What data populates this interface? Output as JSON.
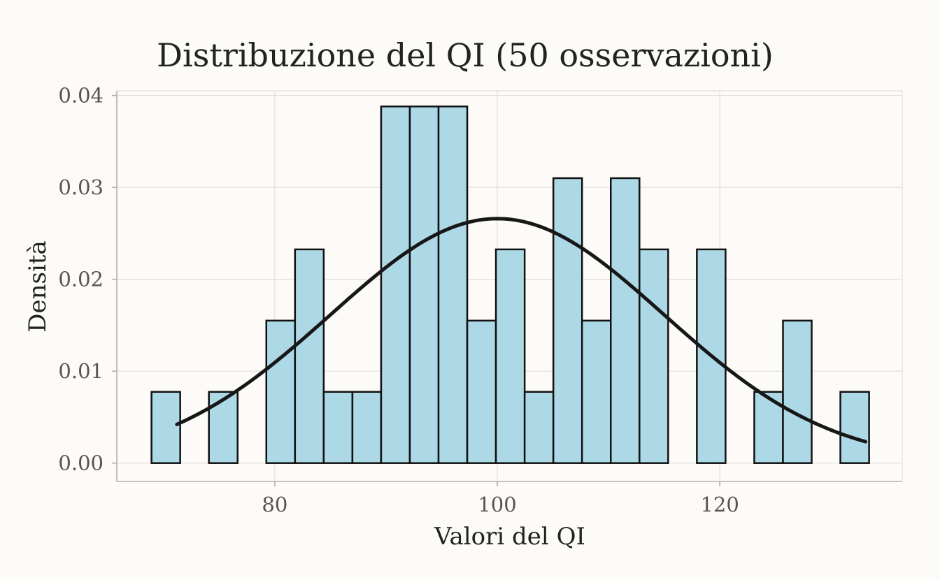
{
  "chart_data": {
    "type": "bar",
    "subtype": "histogram",
    "title": "Distribuzione del QI (50 osservazioni)",
    "xlabel": "Valori del QI",
    "ylabel": "Densità",
    "xlim": [
      65.8,
      136.4
    ],
    "ylim": [
      -0.002,
      0.0405
    ],
    "x_ticks": [
      80,
      100,
      120
    ],
    "x_tick_labels": [
      "80",
      "100",
      "120"
    ],
    "y_ticks": [
      0,
      0.01,
      0.02,
      0.03,
      0.04
    ],
    "y_tick_labels": [
      "0.00",
      "0.01",
      "0.02",
      "0.03",
      "0.04"
    ],
    "grid": true,
    "legend": "none",
    "bin_width": 2.58,
    "bins": [
      {
        "x0": 68.92,
        "x1": 71.5,
        "density": 0.00775
      },
      {
        "x0": 71.5,
        "x1": 74.08,
        "density": 0
      },
      {
        "x0": 74.08,
        "x1": 76.66,
        "density": 0.00775
      },
      {
        "x0": 76.66,
        "x1": 79.24,
        "density": 0
      },
      {
        "x0": 79.24,
        "x1": 81.82,
        "density": 0.0155
      },
      {
        "x0": 81.82,
        "x1": 84.4,
        "density": 0.02325
      },
      {
        "x0": 84.4,
        "x1": 86.98,
        "density": 0.00775
      },
      {
        "x0": 86.98,
        "x1": 89.56,
        "density": 0.00775
      },
      {
        "x0": 89.56,
        "x1": 92.14,
        "density": 0.0388
      },
      {
        "x0": 92.14,
        "x1": 94.72,
        "density": 0.0388
      },
      {
        "x0": 94.72,
        "x1": 97.3,
        "density": 0.0388
      },
      {
        "x0": 97.3,
        "x1": 99.88,
        "density": 0.0155
      },
      {
        "x0": 99.88,
        "x1": 102.46,
        "density": 0.02325
      },
      {
        "x0": 102.46,
        "x1": 105.04,
        "density": 0.00775
      },
      {
        "x0": 105.04,
        "x1": 107.62,
        "density": 0.031
      },
      {
        "x0": 107.62,
        "x1": 110.2,
        "density": 0.0155
      },
      {
        "x0": 110.2,
        "x1": 112.78,
        "density": 0.031
      },
      {
        "x0": 112.78,
        "x1": 115.36,
        "density": 0.02325
      },
      {
        "x0": 115.36,
        "x1": 117.94,
        "density": 0
      },
      {
        "x0": 117.94,
        "x1": 120.52,
        "density": 0.02325
      },
      {
        "x0": 120.52,
        "x1": 123.1,
        "density": 0
      },
      {
        "x0": 123.1,
        "x1": 125.68,
        "density": 0.00775
      },
      {
        "x0": 125.68,
        "x1": 128.26,
        "density": 0.0155
      },
      {
        "x0": 128.26,
        "x1": 130.84,
        "density": 0
      },
      {
        "x0": 130.84,
        "x1": 133.42,
        "density": 0.00775
      }
    ],
    "density_curve": {
      "mean": 100,
      "sd": 15,
      "x_range": [
        71.2,
        133.1
      ]
    },
    "colors": {
      "bar_fill": "#add8e6",
      "bar_outline": "#111111",
      "curve": "#171717",
      "background": "#fcfbf8",
      "grid": "#e2dfdb"
    }
  }
}
